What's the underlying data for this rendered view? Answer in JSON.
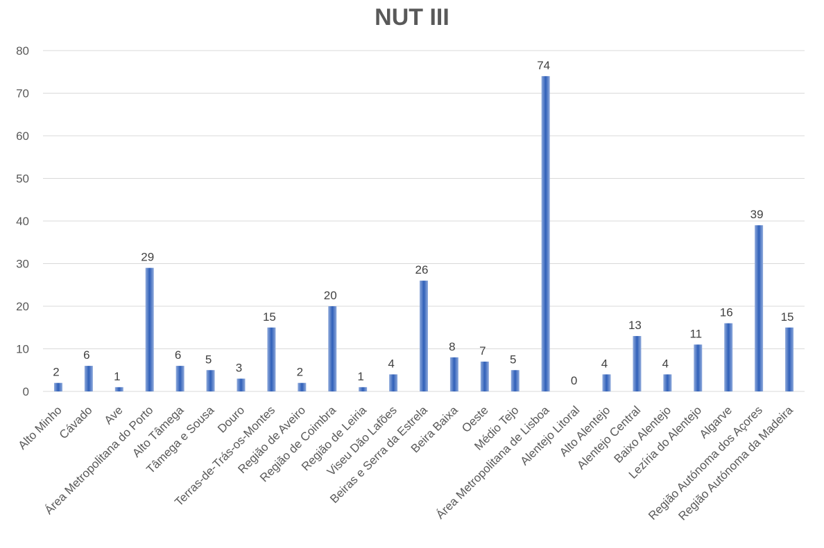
{
  "chart_data": {
    "type": "bar",
    "title": "NUT III",
    "xlabel": "",
    "ylabel": "",
    "ylim": [
      0,
      80
    ],
    "yticks": [
      0,
      10,
      20,
      30,
      40,
      50,
      60,
      70,
      80
    ],
    "grid": true,
    "legend": "none",
    "colors": {
      "bar": "#4472c4",
      "bar_dark": "#2f5597",
      "bar_light": "#8faadc"
    },
    "categories": [
      "Alto Minho",
      "Cávado",
      "Ave",
      "Área Metropolitana do Porto",
      "Alto Tâmega",
      "Tâmega e Sousa",
      "Douro",
      "Terras-de-Trás-os-Montes",
      "Região de Aveiro",
      "Região de Coimbra",
      "Região de Leiria",
      "Viseu Dão Lafões",
      "Beiras e Serra da Estrela",
      "Beira Baixa",
      "Oeste",
      "Médio Tejo",
      "Área Metropolitana de Lisboa",
      "Alentejo Litoral",
      "Alto Alentejo",
      "Alentejo Central",
      "Baixo Alentejo",
      "Lezíria do Alentejo",
      "Algarve",
      "Região Autónoma dos Açores",
      "Região Autónoma da Madeira"
    ],
    "values": [
      2,
      6,
      1,
      29,
      6,
      5,
      3,
      15,
      2,
      20,
      1,
      4,
      26,
      8,
      7,
      5,
      74,
      0,
      4,
      13,
      4,
      11,
      16,
      39,
      15
    ]
  }
}
